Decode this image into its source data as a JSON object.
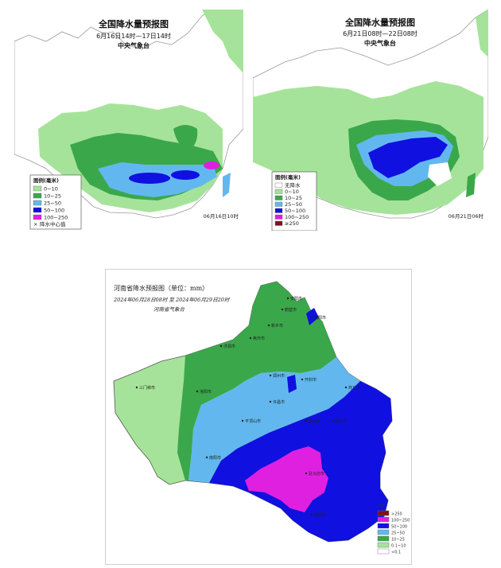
{
  "maps": [
    {
      "title": "全国降水量预报图",
      "period": "6月16日14时—17日14时",
      "issuer": "中央气象台",
      "legend_title": "图例(毫米)",
      "legend": [
        {
          "label": "0~10",
          "color": "#a6e39a"
        },
        {
          "label": "10~25",
          "color": "#3aa84a"
        },
        {
          "label": "25~50",
          "color": "#62b8ee"
        },
        {
          "label": "50~100",
          "color": "#1010e0"
        },
        {
          "label": "100~250",
          "color": "#e020e0"
        }
      ],
      "legend_marker": "降水中心值",
      "issue_stamp": "06月16日10时"
    },
    {
      "title": "全国降水量预报图",
      "period": "6月21日08时—22日08时",
      "issuer": "中央气象台",
      "legend_title": "图例(毫米)",
      "legend": [
        {
          "label": "无降水",
          "color": "#ffffff"
        },
        {
          "label": "0~10",
          "color": "#a6e39a"
        },
        {
          "label": "10~25",
          "color": "#3aa84a"
        },
        {
          "label": "25~50",
          "color": "#62b8ee"
        },
        {
          "label": "50~100",
          "color": "#1010e0"
        },
        {
          "label": "100~250",
          "color": "#e020e0"
        },
        {
          "label": "≥250",
          "color": "#801020"
        }
      ],
      "issue_stamp": "06月21日06时"
    },
    {
      "title": "河南省降水预报图（单位：mm）",
      "period": "2024年06月28日08时  至  2024年06月29日20时",
      "issuer": "河南省气象台",
      "legend_unit": "mm",
      "legend": [
        {
          "label": ">250",
          "color": "#801020"
        },
        {
          "label": "100~250",
          "color": "#e020e0"
        },
        {
          "label": "50~100",
          "color": "#1010e0"
        },
        {
          "label": "25~50",
          "color": "#62b8ee"
        },
        {
          "label": "10~25",
          "color": "#3aa84a"
        },
        {
          "label": "0.1~10",
          "color": "#a6e39a"
        },
        {
          "label": "<0.1",
          "color": "#ffffff"
        }
      ],
      "cities": [
        "安阳市",
        "鹤壁市",
        "濮阳市",
        "新乡市",
        "焦作市",
        "济源市",
        "三门峡市",
        "洛阳市",
        "郑州市",
        "开封市",
        "商丘市",
        "许昌市",
        "平顶山市",
        "周口市",
        "漯河市",
        "南阳市",
        "驻马店市",
        "信阳市"
      ]
    }
  ]
}
